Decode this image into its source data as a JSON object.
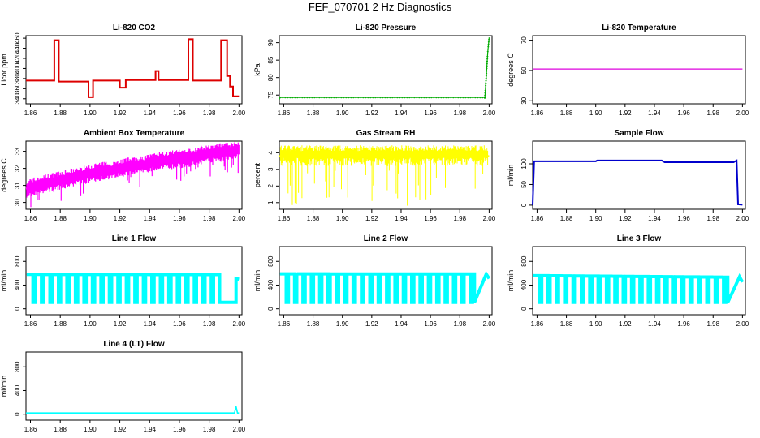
{
  "title": "FEF_070701  2 Hz Diagnostics",
  "chart_data": [
    {
      "type": "line",
      "title": "Li-820 CO2",
      "ylabel": "Licor ppm",
      "color": "#dd0000",
      "xlim": [
        1.857,
        2.002
      ],
      "ylim": [
        330,
        465
      ],
      "xticks": [
        "1.86",
        "1.88",
        "1.90",
        "1.92",
        "1.94",
        "1.96",
        "1.98",
        "2.00"
      ],
      "yticks": [
        340,
        360,
        380,
        400,
        420,
        440,
        460
      ],
      "x": [
        1.857,
        1.876,
        1.876,
        1.879,
        1.879,
        1.899,
        1.899,
        1.902,
        1.902,
        1.92,
        1.92,
        1.924,
        1.924,
        1.944,
        1.944,
        1.946,
        1.946,
        1.966,
        1.966,
        1.969,
        1.969,
        1.988,
        1.988,
        1.992,
        1.992,
        1.994,
        1.994,
        1.996,
        1.996,
        2.0
      ],
      "y": [
        376,
        376,
        456,
        456,
        374,
        374,
        343,
        343,
        376,
        376,
        362,
        362,
        377,
        377,
        395,
        395,
        377,
        377,
        458,
        458,
        376,
        376,
        456,
        456,
        385,
        385,
        364,
        364,
        345,
        345
      ]
    },
    {
      "type": "line",
      "title": "Li-820 Pressure",
      "ylabel": "kPa",
      "color": "#00aa00",
      "xlim": [
        1.857,
        2.002
      ],
      "ylim": [
        72.5,
        92
      ],
      "xticks": [
        "1.86",
        "1.88",
        "1.90",
        "1.92",
        "1.94",
        "1.96",
        "1.98",
        "2.00"
      ],
      "yticks": [
        75,
        80,
        85,
        90
      ],
      "x": [
        1.857,
        1.857,
        1.997,
        1.997,
        1.998,
        1.999,
        2.0
      ],
      "y": [
        73.8,
        74.3,
        74.3,
        73.9,
        80.0,
        87.0,
        91.5
      ]
    },
    {
      "type": "line",
      "title": "Li-820 Temperature",
      "ylabel": "degrees C",
      "color": "#dd00dd",
      "xlim": [
        1.857,
        2.002
      ],
      "ylim": [
        28,
        73
      ],
      "xticks": [
        "1.86",
        "1.88",
        "1.90",
        "1.92",
        "1.94",
        "1.96",
        "1.98",
        "2.00"
      ],
      "yticks": [
        30,
        50,
        70
      ],
      "x": [
        1.857,
        2.0
      ],
      "y": [
        51,
        51
      ]
    },
    {
      "type": "line",
      "title": "Ambient Box Temperature",
      "ylabel": "degrees C",
      "color": "#ff00ff",
      "xlim": [
        1.857,
        2.002
      ],
      "ylim": [
        29.6,
        33.6
      ],
      "xticks": [
        "1.86",
        "1.88",
        "1.90",
        "1.92",
        "1.94",
        "1.96",
        "1.98",
        "2.00"
      ],
      "yticks": [
        30,
        31,
        32,
        33
      ],
      "x": [
        1.857,
        1.865,
        1.875,
        1.885,
        1.895,
        1.905,
        1.915,
        1.925,
        1.935,
        1.945,
        1.955,
        1.965,
        1.975,
        1.985,
        1.995,
        2.0
      ],
      "y": [
        30.8,
        31.0,
        31.2,
        31.4,
        31.6,
        31.8,
        31.9,
        32.1,
        32.2,
        32.4,
        32.5,
        32.6,
        32.8,
        32.9,
        33.0,
        33.1
      ]
    },
    {
      "type": "line",
      "title": "Gas Stream RH",
      "ylabel": "percent",
      "color": "#ffff00",
      "xlim": [
        1.857,
        2.002
      ],
      "ylim": [
        0.6,
        4.7
      ],
      "xticks": [
        "1.86",
        "1.88",
        "1.90",
        "1.92",
        "1.94",
        "1.96",
        "1.98",
        "2.00"
      ],
      "yticks": [
        1,
        2,
        3,
        4
      ],
      "x": [
        1.857,
        1.88,
        1.9,
        1.92,
        1.94,
        1.96,
        1.98,
        2.0
      ],
      "y": [
        3.8,
        3.7,
        3.7,
        3.8,
        3.8,
        3.7,
        3.8,
        3.8
      ]
    },
    {
      "type": "line",
      "title": "Sample Flow",
      "ylabel": "ml/min",
      "color": "#0000cc",
      "xlim": [
        1.857,
        2.002
      ],
      "ylim": [
        -10,
        155
      ],
      "xticks": [
        "1.86",
        "1.88",
        "1.90",
        "1.92",
        "1.94",
        "1.96",
        "1.98",
        "2.00"
      ],
      "yticks": [
        0,
        50,
        100
      ],
      "x": [
        1.857,
        1.858,
        1.9,
        1.901,
        1.945,
        1.947,
        1.994,
        1.996,
        1.997,
        2.0
      ],
      "y": [
        0,
        106,
        106,
        108,
        108,
        104,
        104,
        108,
        2,
        1
      ]
    },
    {
      "type": "line",
      "title": "Line 1 Flow",
      "ylabel": "ml/min",
      "color": "#00ffff",
      "xlim": [
        1.857,
        2.002
      ],
      "ylim": [
        -100,
        1050
      ],
      "xticks": [
        "1.86",
        "1.88",
        "1.90",
        "1.92",
        "1.94",
        "1.96",
        "1.98",
        "2.00"
      ],
      "yticks": [
        0,
        400,
        800
      ],
      "ytick_labels": [
        "0",
        "400",
        "800"
      ],
      "x": [
        1.857,
        1.987,
        1.987,
        1.998,
        1.998,
        2.0
      ],
      "y": [
        580,
        580,
        110,
        110,
        510,
        500
      ]
    },
    {
      "type": "line",
      "title": "Line 2 Flow",
      "ylabel": "ml/min",
      "color": "#00ffff",
      "xlim": [
        1.857,
        2.002
      ],
      "ylim": [
        -100,
        1050
      ],
      "xticks": [
        "1.86",
        "1.88",
        "1.90",
        "1.92",
        "1.94",
        "1.96",
        "1.98",
        "2.00"
      ],
      "yticks": [
        0,
        400,
        800
      ],
      "ytick_labels": [
        "0",
        "400",
        "800"
      ],
      "x": [
        1.857,
        1.998,
        2.0
      ],
      "y": [
        590,
        585,
        510
      ]
    },
    {
      "type": "line",
      "title": "Line 3 Flow",
      "ylabel": "ml/min",
      "color": "#00ffff",
      "xlim": [
        1.857,
        2.002
      ],
      "ylim": [
        -100,
        1050
      ],
      "xticks": [
        "1.86",
        "1.88",
        "1.90",
        "1.92",
        "1.94",
        "1.96",
        "1.98",
        "2.00"
      ],
      "yticks": [
        0,
        400,
        800
      ],
      "ytick_labels": [
        "0",
        "400",
        "800"
      ],
      "x": [
        1.857,
        1.998,
        2.0
      ],
      "y": [
        560,
        540,
        450
      ]
    },
    {
      "type": "line",
      "title": "Line 4 (LT) Flow",
      "ylabel": "ml/min",
      "color": "#00ffff",
      "xlim": [
        1.857,
        2.002
      ],
      "ylim": [
        -100,
        1050
      ],
      "xticks": [
        "1.86",
        "1.88",
        "1.90",
        "1.92",
        "1.94",
        "1.96",
        "1.98",
        "2.00"
      ],
      "yticks": [
        0,
        400,
        800
      ],
      "ytick_labels": [
        "0",
        "400",
        "800"
      ],
      "x": [
        1.857,
        1.997,
        1.998,
        1.999,
        2.0
      ],
      "y": [
        20,
        20,
        130,
        20,
        20
      ]
    }
  ]
}
